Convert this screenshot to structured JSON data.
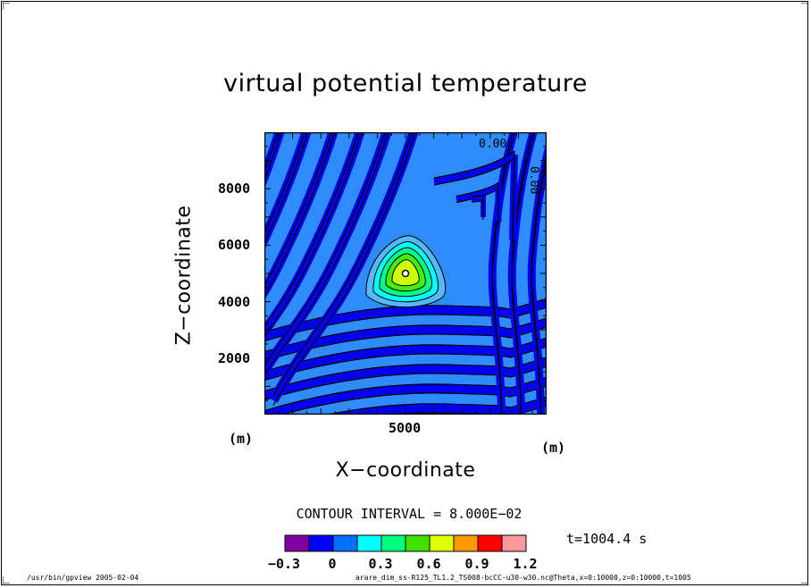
{
  "chart_data": {
    "type": "contour",
    "title": "virtual potential temperature",
    "xlabel": "X−coordinate",
    "ylabel": "Z−coordinate",
    "x_unit": "(m)",
    "y_unit": "(m)",
    "xlim": [
      0,
      10000
    ],
    "ylim": [
      0,
      10000
    ],
    "x_ticks": [
      "5000"
    ],
    "y_ticks": [
      "2000",
      "4000",
      "6000",
      "8000"
    ],
    "contour_interval_text": "CONTOUR INTERVAL = 8.000E−02",
    "contour_labels": [
      "0.00",
      "0.00"
    ],
    "time_text": "t=1004.4  s",
    "colorbar": {
      "levels": [
        "−0.3",
        "0",
        "0.3",
        "0.6",
        "0.9",
        "1.2"
      ],
      "colors": [
        "#8000a0",
        "#0000ff",
        "#0070ff",
        "#00ffff",
        "#00ff80",
        "#40e000",
        "#e0ff00",
        "#ff9900",
        "#ff0000",
        "#ff9999"
      ]
    },
    "field_colors": {
      "background": "#2e8cff",
      "band": "#0000ee",
      "bubble_levels": [
        "#58b8ff",
        "#00ffff",
        "#00ff88",
        "#44ee00",
        "#ccff00"
      ]
    },
    "bubble_center": {
      "x": 5000,
      "z": 5000
    }
  },
  "footer": {
    "left": "/usr/bin/gpview  2005-02-04",
    "right": "arare_dim_ss-R125_TL1.2_TS008-bcCC-u30-w30.nc@Theta,x=0:10000,z=0:10000,t=1005"
  }
}
